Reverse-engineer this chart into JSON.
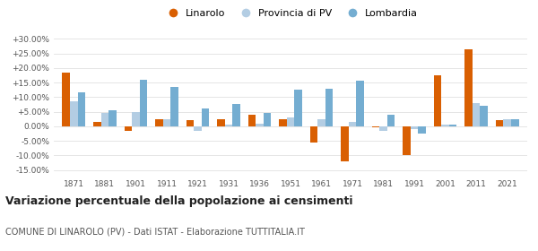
{
  "years": [
    1871,
    1881,
    1901,
    1911,
    1921,
    1931,
    1936,
    1951,
    1961,
    1971,
    1981,
    1991,
    2001,
    2011,
    2021
  ],
  "linarolo": [
    18.5,
    1.5,
    -1.5,
    2.5,
    2.0,
    2.5,
    4.0,
    2.5,
    -5.5,
    -12.0,
    -0.5,
    -10.0,
    17.5,
    26.5,
    2.0
  ],
  "provincia_pv": [
    8.5,
    4.5,
    5.0,
    2.5,
    -1.5,
    0.5,
    1.0,
    3.0,
    2.5,
    1.5,
    -1.5,
    -1.0,
    0.5,
    8.0,
    2.5
  ],
  "lombardia": [
    11.5,
    5.5,
    16.0,
    13.5,
    6.0,
    7.5,
    4.5,
    12.5,
    13.0,
    15.5,
    4.0,
    -2.5,
    0.5,
    7.0,
    2.5
  ],
  "color_linarolo": "#d95f02",
  "color_provincia": "#b3cde3",
  "color_lombardia": "#74add1",
  "legend_labels": [
    "Linarolo",
    "Provincia di PV",
    "Lombardia"
  ],
  "title": "Variazione percentuale della popolazione ai censimenti",
  "subtitle": "COMUNE DI LINAROLO (PV) - Dati ISTAT - Elaborazione TUTTITALIA.IT",
  "ylim": [
    -17,
    33
  ],
  "yticks": [
    -15,
    -10,
    -5,
    0,
    5,
    10,
    15,
    20,
    25,
    30
  ],
  "ytick_labels": [
    "-15.00%",
    "-10.00%",
    "-5.00%",
    "0.00%",
    "+5.00%",
    "+10.00%",
    "+15.00%",
    "+20.00%",
    "+25.00%",
    "+30.00%"
  ],
  "background_color": "#ffffff",
  "grid_color": "#e0e0e0",
  "bar_width": 0.25,
  "title_fontsize": 9,
  "subtitle_fontsize": 7,
  "tick_fontsize": 6.5,
  "legend_fontsize": 8
}
